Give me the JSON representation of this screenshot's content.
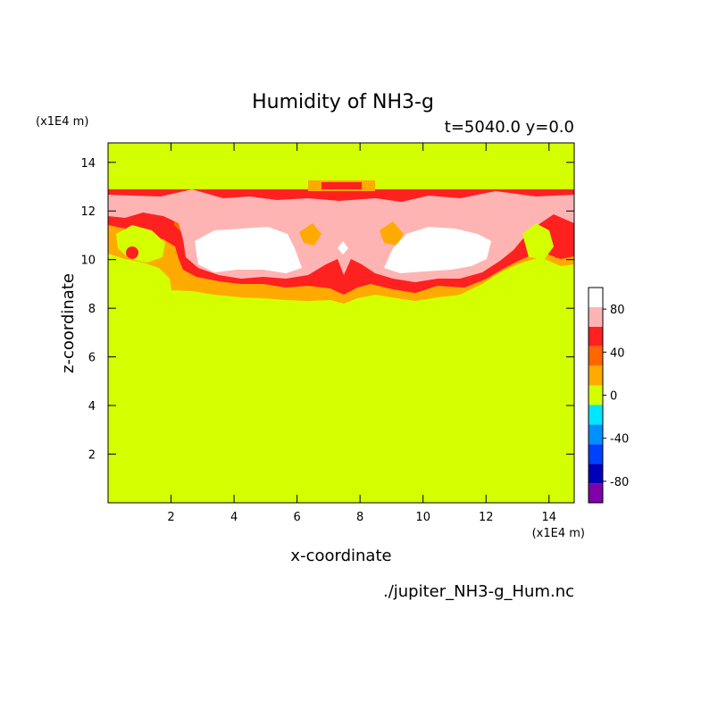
{
  "chart_data": {
    "type": "heatmap",
    "title": "Humidity of NH3-g",
    "subtitle": "t=5040.0 y=0.0",
    "xlabel": "x-coordinate",
    "ylabel": "z-coordinate",
    "x_unit": "(x1E4 m)",
    "y_unit": "(x1E4 m)",
    "source_file": "./jupiter_NH3-g_Hum.nc",
    "xlim": [
      0,
      14.8
    ],
    "ylim": [
      0,
      14.8
    ],
    "x_ticks": [
      2,
      4,
      6,
      8,
      10,
      12,
      14
    ],
    "y_ticks": [
      2,
      4,
      6,
      8,
      10,
      12,
      14
    ],
    "background_value_range": [
      0,
      20
    ],
    "colorbar": {
      "levels": [
        -100,
        -80,
        -60,
        -40,
        -20,
        0,
        20,
        40,
        60,
        80,
        100
      ],
      "labels": [
        -80,
        -40,
        0,
        40,
        80
      ],
      "colors": [
        "#7f00a8",
        "#0000b8",
        "#0040ff",
        "#0090ff",
        "#00e6ff",
        "#d4ff00",
        "#ffaa00",
        "#ff6600",
        "#ff2020",
        "#ffb4b4",
        "#ffffff"
      ]
    },
    "regions": [
      {
        "name": "upper moist layer outer",
        "color": "#ffaa00",
        "x": [
          0,
          14.8
        ],
        "z": [
          8.2,
          13.1
        ]
      },
      {
        "name": "upper moist layer inner",
        "color": "#ff2020",
        "x": [
          0.1,
          14.7
        ],
        "z": [
          9.0,
          13.0
        ]
      },
      {
        "name": "near-saturated layer",
        "color": "#ffb4b4",
        "x": [
          0.2,
          14.6
        ],
        "z": [
          9.4,
          12.8
        ]
      },
      {
        "name": "saturated left core",
        "color": "#ffffff",
        "x": [
          2.8,
          6.3
        ],
        "z": [
          9.8,
          11.2
        ]
      },
      {
        "name": "saturated right core",
        "color": "#ffffff",
        "x": [
          8.8,
          12.0
        ],
        "z": [
          9.8,
          11.2
        ]
      }
    ]
  }
}
